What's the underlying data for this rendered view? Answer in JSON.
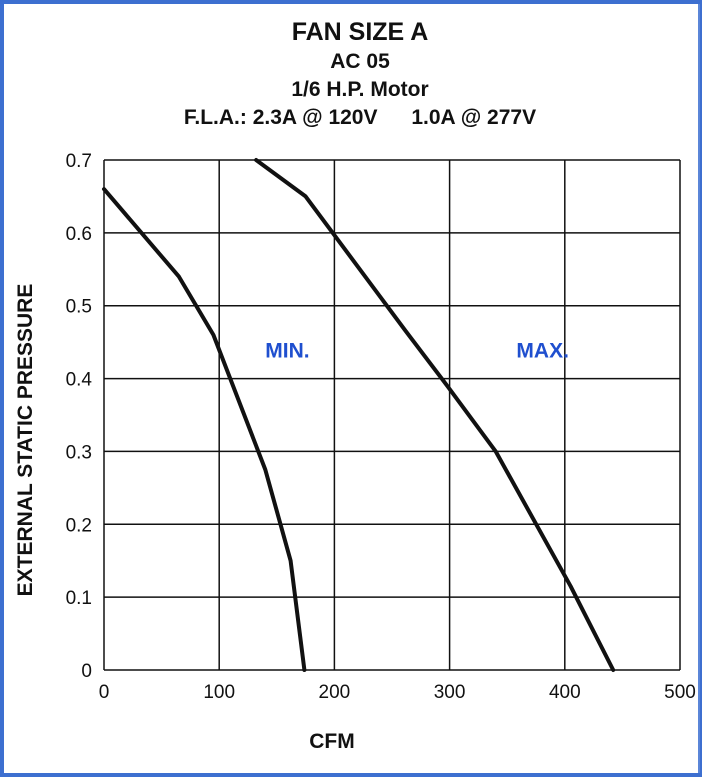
{
  "header": {
    "title": "FAN SIZE A",
    "model": "AC 05",
    "motor": "1/6 H.P. Motor",
    "fla_120": "F.L.A.: 2.3A @ 120V",
    "fla_277": "1.0A @ 277V"
  },
  "chart_data": {
    "type": "line",
    "title": "FAN SIZE A",
    "xlabel": "CFM",
    "ylabel": "EXTERNAL STATIC PRESSURE",
    "xlim": [
      0,
      500
    ],
    "ylim": [
      0,
      0.7
    ],
    "xticks": [
      "0",
      "100",
      "200",
      "300",
      "400",
      "500"
    ],
    "yticks": [
      "0",
      "0.1",
      "0.2",
      "0.3",
      "0.4",
      "0.5",
      "0.6",
      "0.7"
    ],
    "grid": true,
    "line_color": "#111111",
    "label_color": "#1f4fcf",
    "series": [
      {
        "name": "MIN.",
        "points": [
          [
            0,
            0.66
          ],
          [
            65,
            0.54
          ],
          [
            95,
            0.46
          ],
          [
            140,
            0.275
          ],
          [
            162,
            0.15
          ],
          [
            174,
            0
          ]
        ]
      },
      {
        "name": "MAX.",
        "points": [
          [
            132,
            0.7
          ],
          [
            175,
            0.65
          ],
          [
            262,
            0.465
          ],
          [
            298,
            0.39
          ],
          [
            340,
            0.3
          ],
          [
            405,
            0.115
          ],
          [
            442,
            0
          ]
        ]
      }
    ]
  }
}
